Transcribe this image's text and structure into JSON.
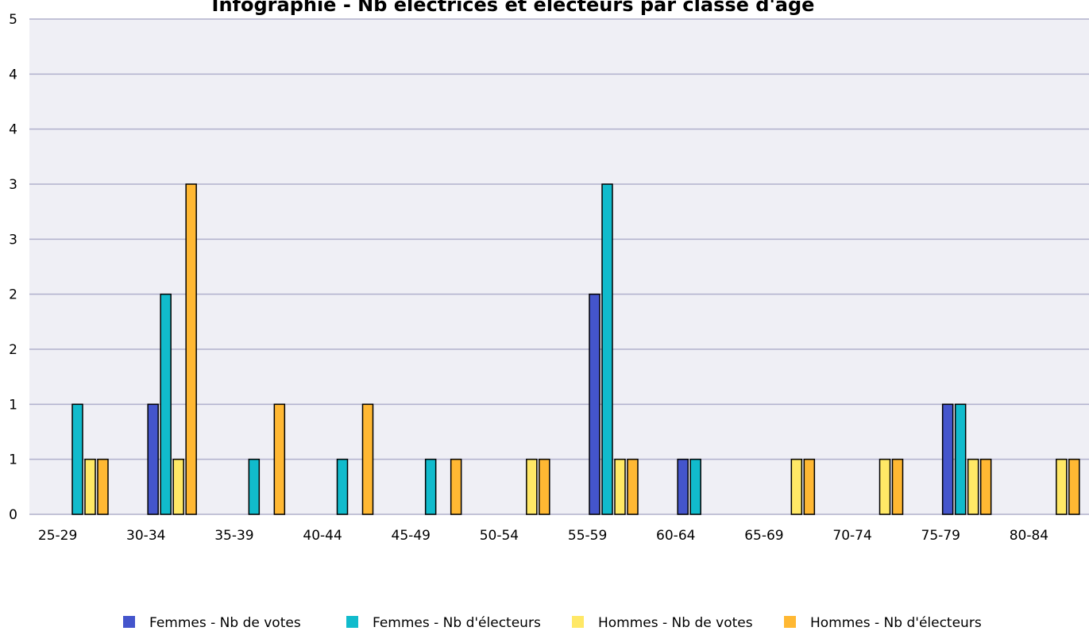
{
  "chart_data": {
    "type": "bar",
    "title": "Infographie - Nb électrices et électeurs par classe d'âge",
    "xlabel": "",
    "ylabel": "",
    "ylim": [
      0,
      4
    ],
    "yticks": [
      0,
      0.5,
      1,
      1.5,
      2,
      2.5,
      3,
      3.5,
      4
    ],
    "ytick_labels": [
      "0",
      "1",
      "1",
      "2",
      "2",
      "3",
      "3",
      "4",
      "4"
    ],
    "ytick_top_label": "5",
    "grid": true,
    "legend_position": "bottom",
    "categories": [
      "25-29",
      "30-34",
      "35-39",
      "40-44",
      "45-49",
      "50-54",
      "55-59",
      "60-64",
      "65-69",
      "70-74",
      "75-79",
      "80-84"
    ],
    "series": [
      {
        "name": "Femmes - Nb de votes",
        "color": "#4455cc",
        "values": [
          0,
          1,
          0,
          0,
          0,
          0,
          2,
          0.5,
          0,
          0,
          1,
          0
        ]
      },
      {
        "name": "Femmes - Nb d'électeurs",
        "color": "#11bbcc",
        "values": [
          1,
          2,
          0.5,
          0.5,
          0.5,
          0,
          3,
          0.5,
          0,
          0,
          1,
          0
        ]
      },
      {
        "name": "Hommes - Nb de votes",
        "color": "#ffe866",
        "values": [
          0.5,
          0.5,
          0,
          0,
          0,
          0.5,
          0.5,
          0,
          0.5,
          0.5,
          0.5,
          0.5
        ]
      },
      {
        "name": "Hommes - Nb d'électeurs",
        "color": "#ffb833",
        "values": [
          0.5,
          3,
          1,
          1,
          0.5,
          0.5,
          0.5,
          0,
          0.5,
          0.5,
          0.5,
          0.5
        ]
      }
    ],
    "plot_background": "#efeff5",
    "grid_color": "#b0b0cc"
  }
}
